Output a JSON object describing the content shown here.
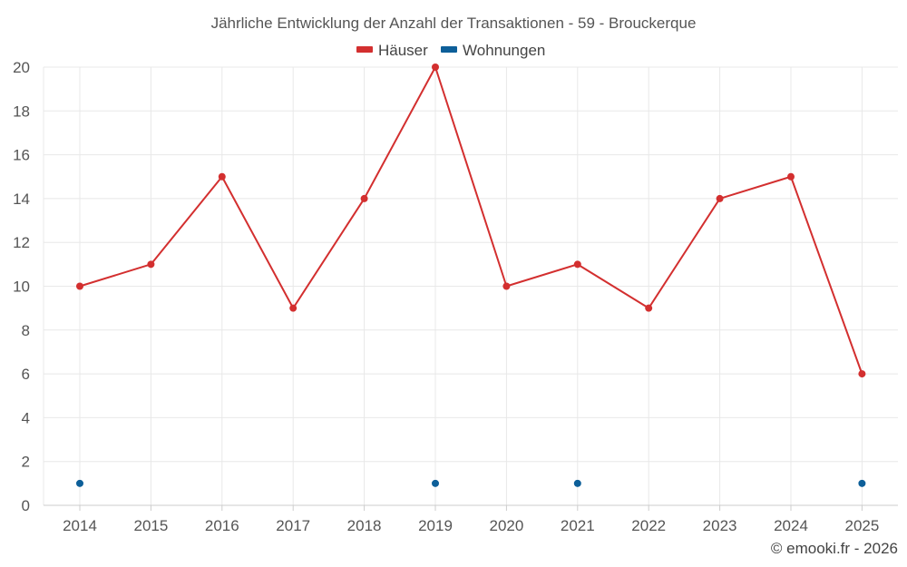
{
  "chart_data": {
    "type": "line",
    "title": "Jährliche Entwicklung der Anzahl der Transaktionen - 59 - Brouckerque",
    "xlabel": "",
    "ylabel": "",
    "categories": [
      "2014",
      "2015",
      "2016",
      "2017",
      "2018",
      "2019",
      "2020",
      "2021",
      "2022",
      "2023",
      "2024",
      "2025"
    ],
    "ylim": [
      0,
      20
    ],
    "yticks": [
      0,
      2,
      4,
      6,
      8,
      10,
      12,
      14,
      16,
      18,
      20
    ],
    "grid": true,
    "legend_position": "top-center",
    "series": [
      {
        "name": "Häuser",
        "color": "#d32f2f",
        "style": "line-markers",
        "values": [
          10,
          11,
          15,
          9,
          14,
          20,
          10,
          11,
          9,
          14,
          15,
          6
        ]
      },
      {
        "name": "Wohnungen",
        "color": "#0d5f99",
        "style": "markers",
        "values": [
          1,
          null,
          null,
          null,
          null,
          1,
          null,
          1,
          null,
          null,
          null,
          1
        ]
      }
    ]
  },
  "watermark": "© emooki.fr - 2026"
}
